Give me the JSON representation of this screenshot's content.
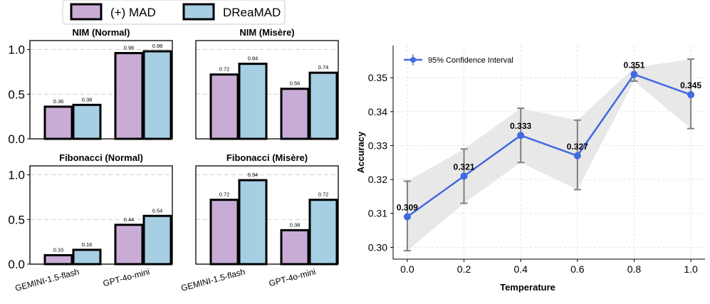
{
  "legend": {
    "items": [
      {
        "label": "(+) MAD",
        "color": "#c9acd6"
      },
      {
        "label": "DReaMAD",
        "color": "#a6cfe3"
      }
    ]
  },
  "chart_data": [
    {
      "type": "bar",
      "title": "NIM (Normal)",
      "categories": [
        "GEMINI-1.5-flash",
        "GPT-4o-mini"
      ],
      "series": [
        {
          "name": "(+) MAD",
          "values": [
            0.36,
            0.96
          ]
        },
        {
          "name": "DReaMAD",
          "values": [
            0.38,
            0.98
          ]
        }
      ],
      "value_labels": [
        [
          "0.36",
          "0.96"
        ],
        [
          "0.38",
          "0.98"
        ]
      ],
      "ylim": [
        0,
        1.1
      ],
      "yticks": [
        "0.0",
        "0.5",
        "1.0"
      ],
      "show_x_labels": false
    },
    {
      "type": "bar",
      "title": "NIM (Misère)",
      "categories": [
        "GEMINI-1.5-flash",
        "GPT-4o-mini"
      ],
      "series": [
        {
          "name": "(+) MAD",
          "values": [
            0.72,
            0.56
          ]
        },
        {
          "name": "DReaMAD",
          "values": [
            0.84,
            0.74
          ]
        }
      ],
      "value_labels": [
        [
          "0.72",
          "0.56"
        ],
        [
          "0.84",
          "0.74"
        ]
      ],
      "ylim": [
        0,
        1.1
      ],
      "show_x_labels": false
    },
    {
      "type": "bar",
      "title": "Fibonacci (Normal)",
      "categories": [
        "GEMINI-1.5-flash",
        "GPT-4o-mini"
      ],
      "series": [
        {
          "name": "(+) MAD",
          "values": [
            0.1,
            0.44
          ]
        },
        {
          "name": "DReaMAD",
          "values": [
            0.16,
            0.54
          ]
        }
      ],
      "value_labels": [
        [
          "0.10",
          "0.44"
        ],
        [
          "0.16",
          "0.54"
        ]
      ],
      "ylim": [
        0,
        1.1
      ],
      "yticks": [
        "0.0",
        "0.5",
        "1.0"
      ],
      "show_x_labels": true
    },
    {
      "type": "bar",
      "title": "Fibonacci (Misère)",
      "categories": [
        "GEMINI-1.5-flash",
        "GPT-4o-mini"
      ],
      "series": [
        {
          "name": "(+) MAD",
          "values": [
            0.72,
            0.38
          ]
        },
        {
          "name": "DReaMAD",
          "values": [
            0.94,
            0.72
          ]
        }
      ],
      "value_labels": [
        [
          "0.72",
          "0.38"
        ],
        [
          "0.94",
          "0.72"
        ]
      ],
      "ylim": [
        0,
        1.1
      ],
      "show_x_labels": true
    },
    {
      "type": "line",
      "title": "",
      "xlabel": "Temperature",
      "ylabel": "Accuracy",
      "x": [
        0.0,
        0.2,
        0.4,
        0.6,
        0.8,
        1.0
      ],
      "xtick_labels": [
        "0.0",
        "0.2",
        "0.4",
        "0.6",
        "0.8",
        "1.0"
      ],
      "y": [
        0.309,
        0.321,
        0.333,
        0.327,
        0.351,
        0.345
      ],
      "point_labels": [
        "0.309",
        "0.321",
        "0.333",
        "0.327",
        "0.351",
        "0.345"
      ],
      "ci_lower": [
        0.299,
        0.313,
        0.325,
        0.317,
        0.349,
        0.335
      ],
      "ci_upper": [
        0.3195,
        0.329,
        0.341,
        0.3375,
        0.353,
        0.3555
      ],
      "xlim": [
        -0.05,
        1.05
      ],
      "ylim": [
        0.2965,
        0.3595
      ],
      "yticks": [
        0.3,
        0.31,
        0.32,
        0.33,
        0.34,
        0.35
      ],
      "ytick_labels": [
        "0.30",
        "0.31",
        "0.32",
        "0.33",
        "0.34",
        "0.35"
      ],
      "legend": "95% Confidence Interval",
      "legend_position": "top-left",
      "line_color": "#4169e1",
      "band_color": "#e8e8e8",
      "errorbar_color": "#808080",
      "grid": true
    }
  ]
}
